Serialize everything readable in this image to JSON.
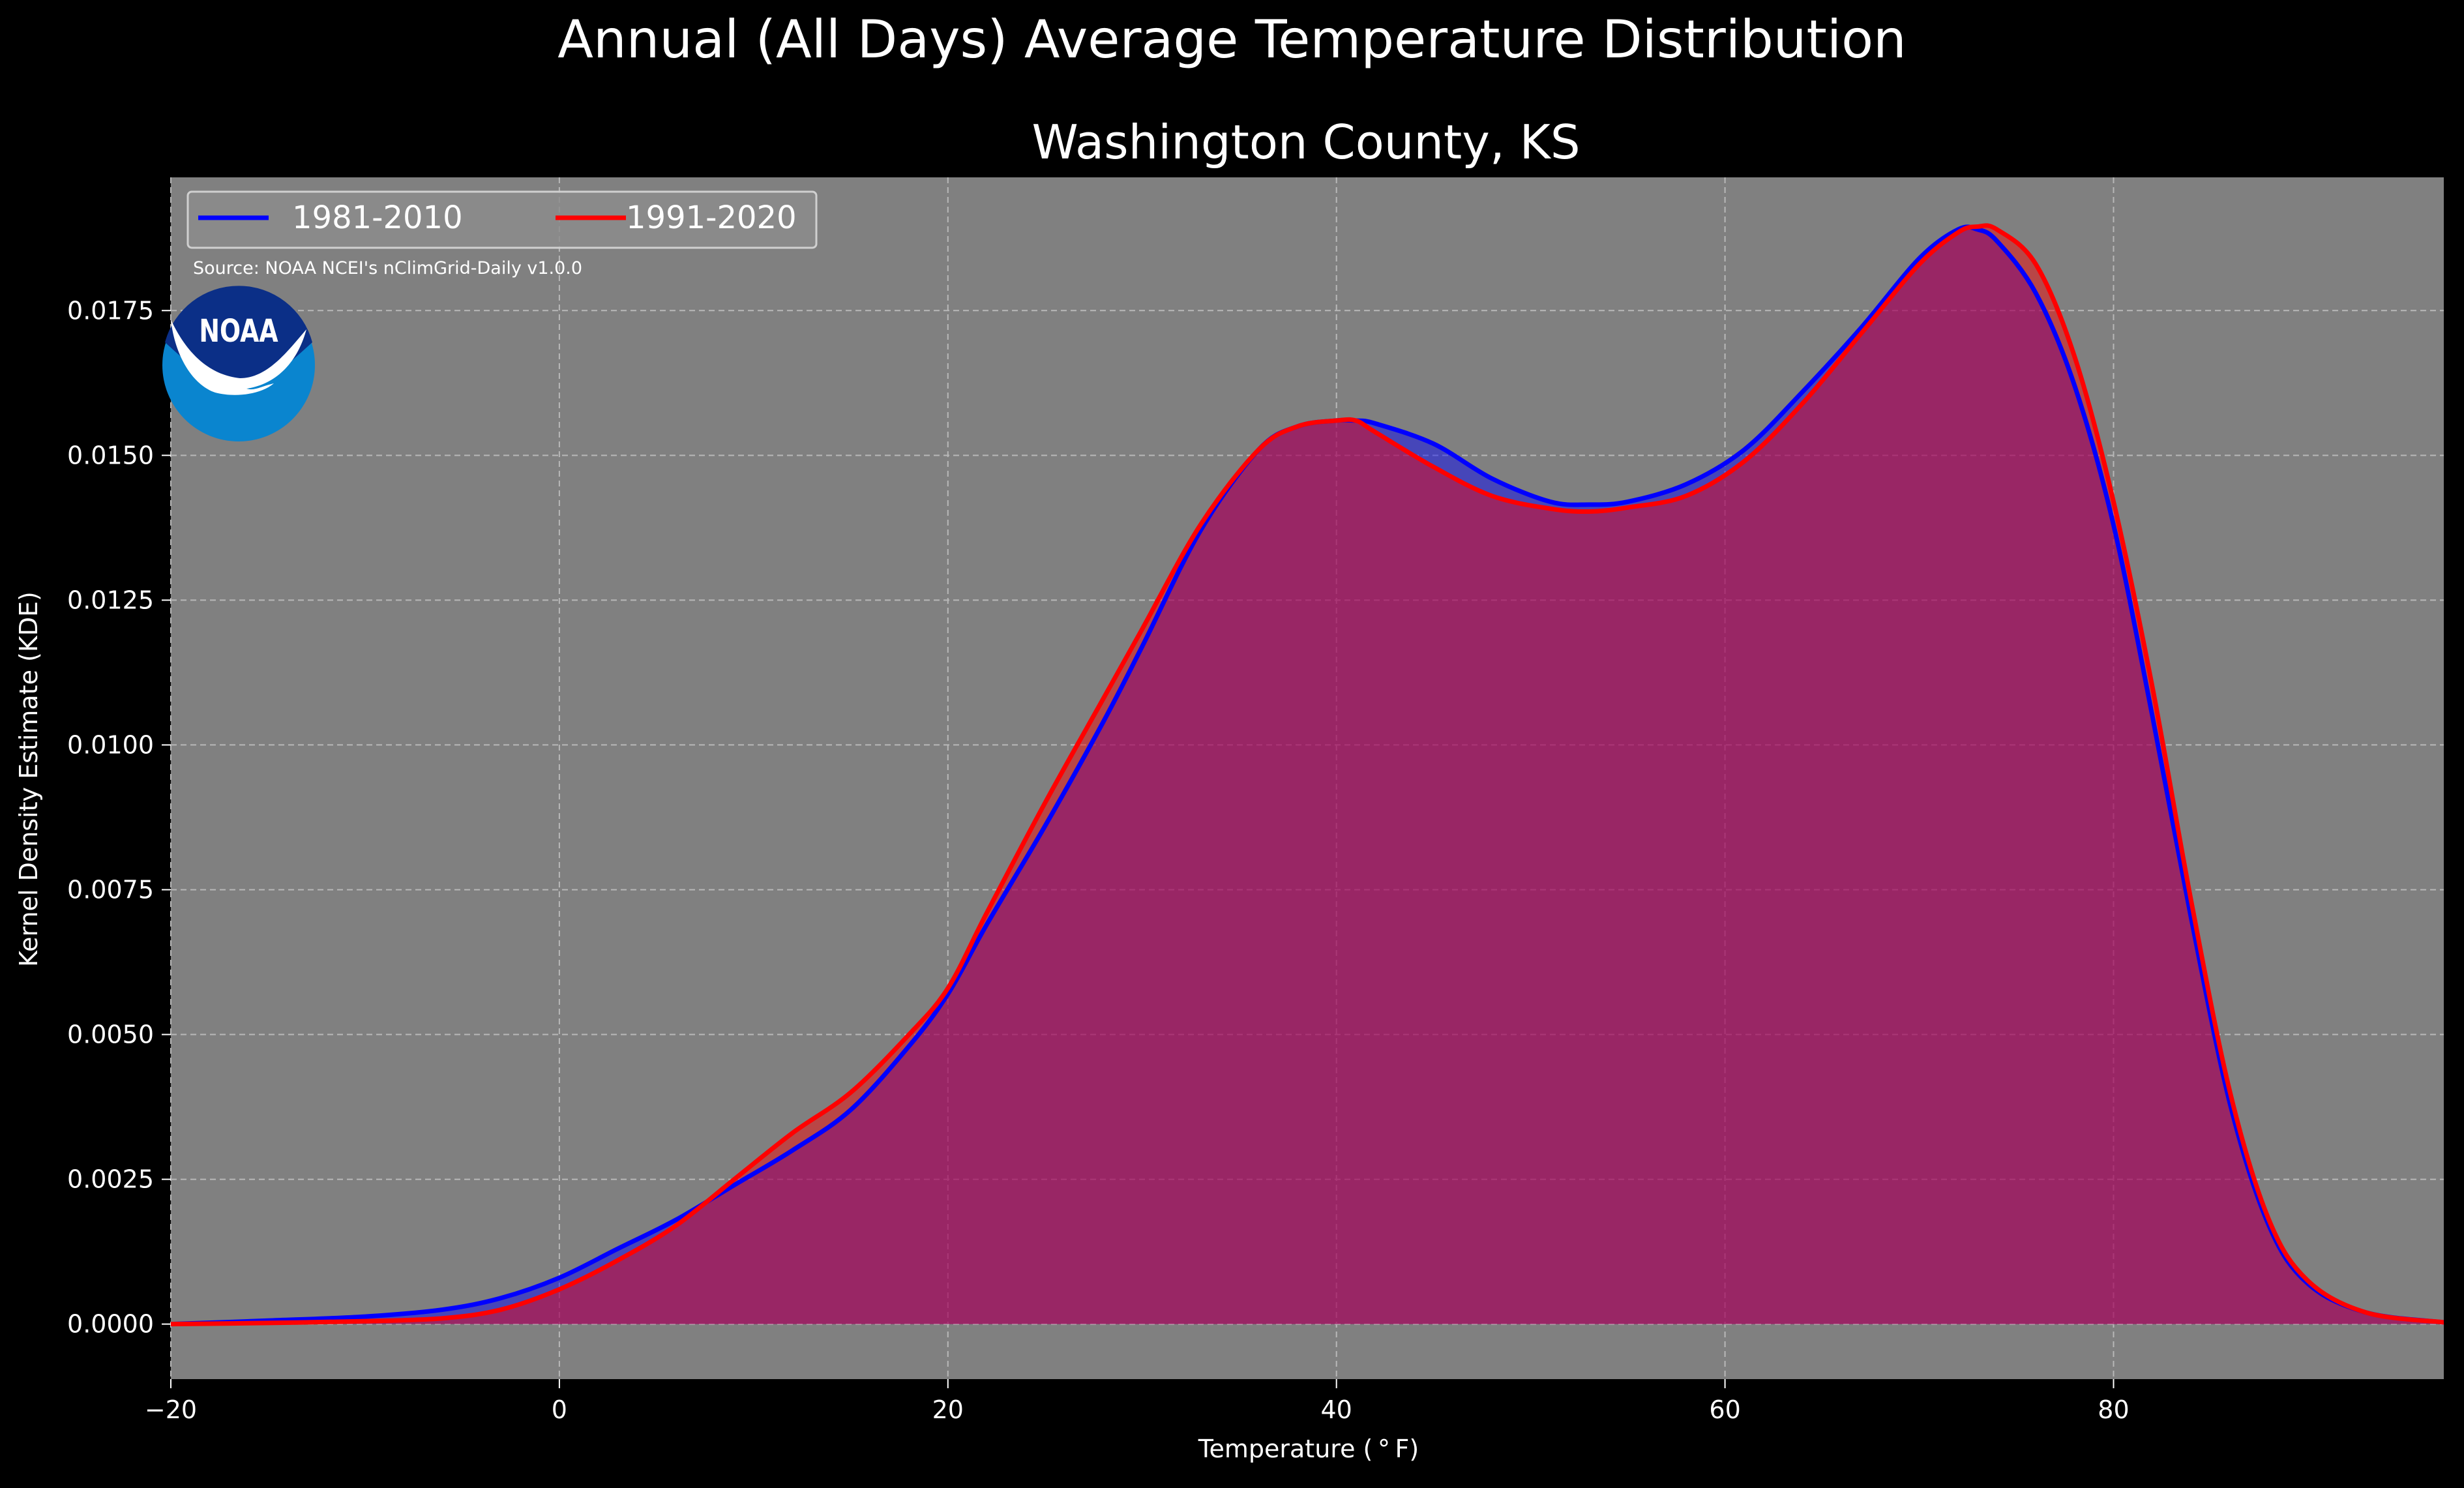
{
  "chart_data": {
    "type": "area",
    "title": "Annual (All Days) Average Temperature Distribution",
    "subtitle": "Washington County, KS",
    "xlabel": "Temperature ($^\\circ$F)",
    "xlabel_display": "Temperature ( ° F)",
    "ylabel": "Kernel Density Estimate (KDE)",
    "source": "Source: NOAA NCEI's nClimGrid-Daily v1.0.0",
    "logo_text": "NOAA",
    "xlim": [
      -20,
      97
    ],
    "ylim": [
      -0.00095,
      0.0198
    ],
    "x_ticks": [
      -20,
      0,
      20,
      40,
      60,
      80
    ],
    "x_tick_labels": [
      "−20",
      "0",
      "20",
      "40",
      "60",
      "80"
    ],
    "y_ticks": [
      0,
      0.0025,
      0.005,
      0.0075,
      0.01,
      0.0125,
      0.015,
      0.0175
    ],
    "y_tick_labels": [
      "0.0000",
      "0.0025",
      "0.0050",
      "0.0075",
      "0.0100",
      "0.0125",
      "0.0150",
      "0.0175"
    ],
    "grid": true,
    "legend_position": "top-left",
    "background_color": "#000000",
    "plot_background_color": "#808080",
    "series": [
      {
        "name": "1981-2010",
        "color": "#0000ff",
        "x": [
          -20,
          -15,
          -10,
          -6,
          -3,
          0,
          3,
          6,
          9,
          12,
          15,
          18,
          20,
          22,
          25,
          28,
          30,
          33,
          36,
          38,
          40,
          41,
          42,
          45,
          48,
          51,
          53,
          55,
          58,
          61,
          64,
          67,
          70,
          72,
          73,
          74,
          76,
          78,
          80,
          82,
          84,
          86,
          88,
          90,
          93,
          97
        ],
        "y": [
          0.0,
          6e-05,
          0.00013,
          0.00025,
          0.00045,
          0.0008,
          0.0013,
          0.0018,
          0.0024,
          0.003,
          0.0037,
          0.0048,
          0.0057,
          0.0069,
          0.0086,
          0.0104,
          0.0117,
          0.0137,
          0.0151,
          0.0155,
          0.0156,
          0.0156,
          0.01555,
          0.0152,
          0.0146,
          0.0142,
          0.01415,
          0.0142,
          0.0145,
          0.0151,
          0.0161,
          0.0172,
          0.0184,
          0.0189,
          0.0189,
          0.0187,
          0.0178,
          0.0162,
          0.0138,
          0.0105,
          0.007,
          0.0038,
          0.0017,
          0.0007,
          0.0002,
          3e-05
        ]
      },
      {
        "name": "1991-2020",
        "color": "#ff0000",
        "x": [
          -20,
          -15,
          -10,
          -6,
          -3,
          0,
          3,
          6,
          9,
          12,
          15,
          18,
          20,
          22,
          25,
          28,
          30,
          33,
          36,
          38,
          40,
          41,
          42,
          45,
          48,
          51,
          53,
          55,
          58,
          61,
          64,
          67,
          70,
          72,
          73,
          74,
          76,
          78,
          80,
          82,
          84,
          86,
          88,
          90,
          93,
          97
        ],
        "y": [
          0.0,
          2e-05,
          5e-05,
          0.0001,
          0.00025,
          0.0006,
          0.0011,
          0.0017,
          0.0025,
          0.0033,
          0.004,
          0.005,
          0.0058,
          0.0071,
          0.009,
          0.0108,
          0.012,
          0.0138,
          0.0151,
          0.0155,
          0.0156,
          0.0156,
          0.0154,
          0.0148,
          0.0143,
          0.01408,
          0.01403,
          0.0141,
          0.0143,
          0.0149,
          0.0159,
          0.0171,
          0.0183,
          0.01885,
          0.01895,
          0.0189,
          0.0183,
          0.0167,
          0.0142,
          0.011,
          0.0073,
          0.004,
          0.0018,
          0.00075,
          0.0002,
          3e-05
        ]
      }
    ],
    "overlap_fill_color": "#9e1e5b"
  }
}
